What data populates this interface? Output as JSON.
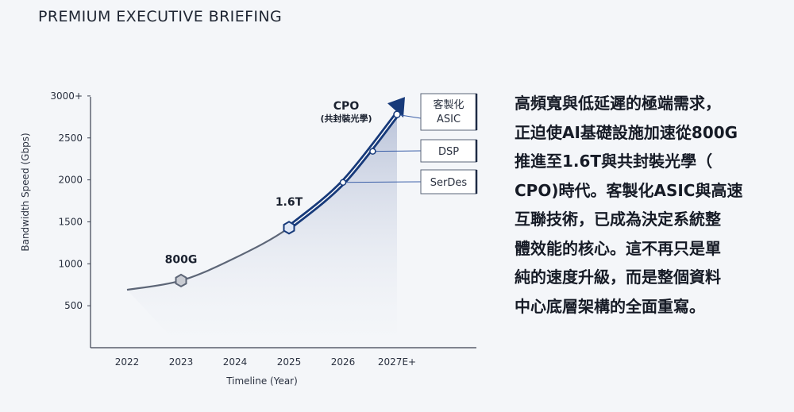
{
  "header": {
    "title": "PREMIUM EXECUTIVE BRIEFING"
  },
  "chart_data": {
    "type": "line",
    "xlabel": "Timeline (Year)",
    "ylabel": "Bandwidth Speed (Gbps)",
    "categories": [
      "2022",
      "2023",
      "2024",
      "2025",
      "2026",
      "2027E+"
    ],
    "y_ticks": [
      "500",
      "1000",
      "1500",
      "2000",
      "2500",
      "3000+"
    ],
    "y_tick_values": [
      500,
      1000,
      1500,
      2000,
      2500,
      3000
    ],
    "ylim": [
      0,
      3000
    ],
    "curve": [
      {
        "x": 2022,
        "y": 690
      },
      {
        "x": 2023,
        "y": 800
      },
      {
        "x": 2024,
        "y": 1070
      },
      {
        "x": 2025,
        "y": 1430
      },
      {
        "x": 2026,
        "y": 1970
      },
      {
        "x": 2027,
        "y": 2780
      }
    ],
    "markers": [
      {
        "label": "800G",
        "x": 2023,
        "y": 800,
        "shape": "hexagon"
      },
      {
        "label": "1.6T",
        "x": 2025,
        "y": 1430,
        "shape": "hexagon"
      },
      {
        "label": "CPO",
        "sublabel": "(共封裝光學)",
        "x": 2027,
        "y": 2780,
        "shape": "dot"
      }
    ],
    "tags": [
      {
        "label": "SerDes",
        "x": 2026,
        "y": 1970
      },
      {
        "label": "DSP",
        "x": 2026.55,
        "y": 2340
      },
      {
        "label_lines": [
          "客製化",
          "ASIC"
        ],
        "x": 2027,
        "y": 2780
      }
    ],
    "grid": false,
    "colors": {
      "curve": "#5d6677",
      "arrow": "#173a7a",
      "accent": "#3b5fa8"
    }
  },
  "body": {
    "lines": [
      "高頻寬與低延遲的極端需求，",
      "正迫使AI基礎設施加速從800G",
      "推進至1.6T與共封裝光學（",
      "CPO)時代。客製化ASIC與高速",
      "互聯技術，已成為決定系統整",
      "體效能的核心。這不再只是單",
      "純的速度升級，而是整個資料",
      "中心底層架構的全面重寫。"
    ]
  }
}
